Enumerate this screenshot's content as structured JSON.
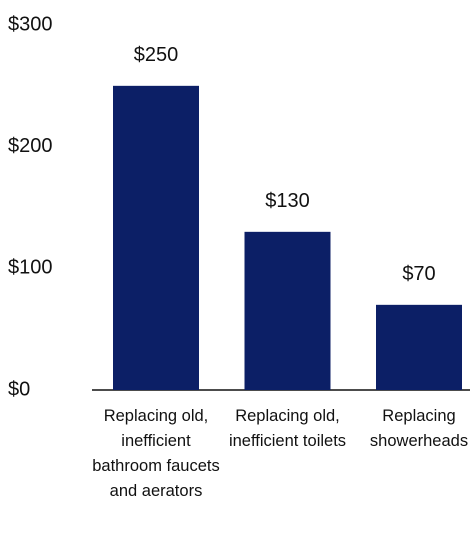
{
  "chart_data": {
    "type": "bar",
    "categories": [
      "Replacing old, inefficient bathroom faucets and aerators",
      "Replacing old, inefficient toilets",
      "Replacing showerheads"
    ],
    "values": [
      250,
      130,
      70
    ],
    "value_labels": [
      "$250",
      "$130",
      "$70"
    ],
    "color": "#0c1f66",
    "ylim": [
      0,
      300
    ],
    "yticks": [
      {
        "value": 0,
        "label": "$0"
      },
      {
        "value": 100,
        "label": "$100"
      },
      {
        "value": 200,
        "label": "$200"
      },
      {
        "value": 300,
        "label": "$300"
      }
    ],
    "grid": false
  }
}
